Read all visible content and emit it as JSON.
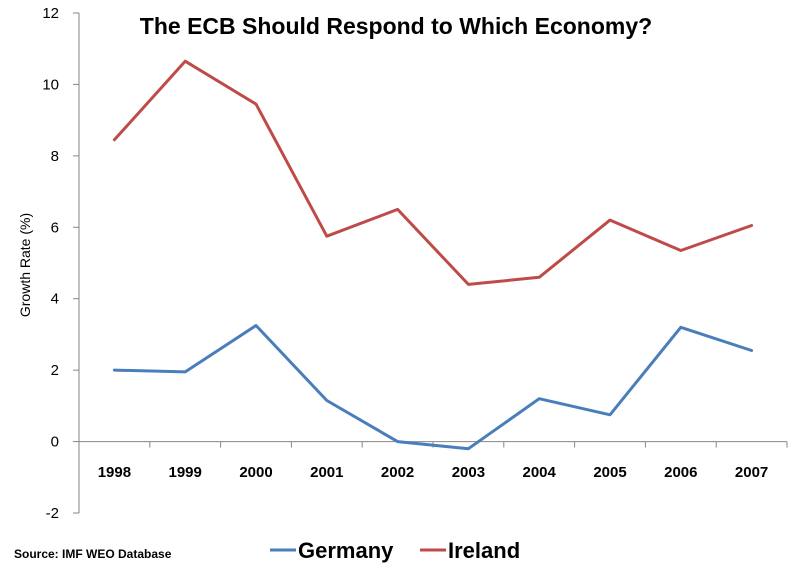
{
  "chart_data": {
    "type": "line",
    "title": "The ECB Should Respond to Which Economy?",
    "xlabel": "",
    "ylabel": "Growth Rate (%)",
    "categories": [
      "1998",
      "1999",
      "2000",
      "2001",
      "2002",
      "2003",
      "2004",
      "2005",
      "2006",
      "2007"
    ],
    "ylim": [
      -2,
      12
    ],
    "yticks": [
      "-2",
      "0",
      "2",
      "4",
      "6",
      "8",
      "10",
      "12"
    ],
    "grid": false,
    "legend_position": "bottom",
    "series": [
      {
        "name": "Germany",
        "color": "#4a7ebb",
        "values": [
          2.0,
          1.95,
          3.25,
          1.15,
          0.0,
          -0.2,
          1.2,
          0.75,
          3.2,
          2.55
        ]
      },
      {
        "name": "Ireland",
        "color": "#be4b48",
        "values": [
          8.45,
          10.65,
          9.45,
          5.75,
          6.5,
          4.4,
          4.6,
          6.2,
          5.35,
          6.05
        ]
      }
    ],
    "source": "Source: IMF WEO Database"
  }
}
